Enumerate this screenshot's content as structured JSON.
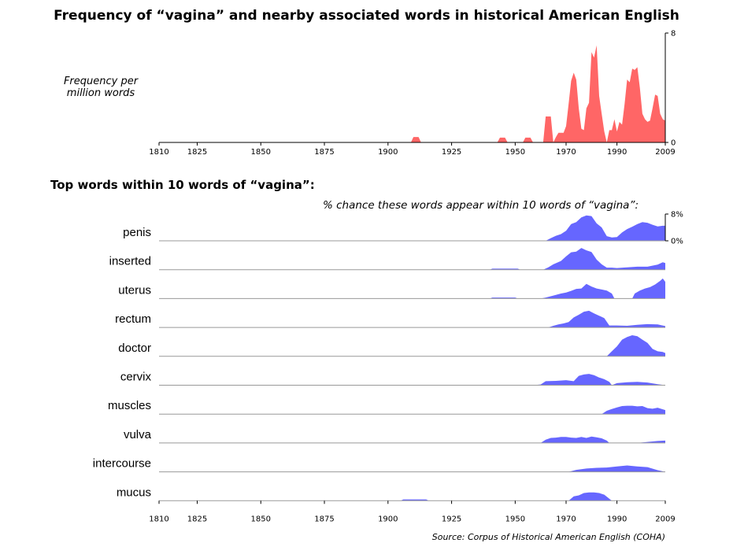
{
  "title": "Frequency of “vagina” and nearby associated words in historical American English",
  "source": "Source: Corpus of Historical American English (COHA)",
  "colors": {
    "main": "#ff6666",
    "rows": "#6666ff",
    "baseline_main": "#000000",
    "baseline_rows": "#999999"
  },
  "chart_data": [
    {
      "type": "area",
      "ylabel": "Frequency per\nmillion words",
      "xlim": [
        1810,
        2009
      ],
      "ylim": [
        0,
        8
      ],
      "x_ticks": [
        1810,
        1825,
        1850,
        1875,
        1900,
        1925,
        1950,
        1970,
        1990,
        2009
      ],
      "x_tick_labels": [
        "1810",
        "1825",
        "1850",
        "1875",
        "1900",
        "1925",
        "1950",
        "1970",
        "1990",
        "2009"
      ],
      "y_ticks": [
        0,
        8
      ],
      "y_tick_labels": [
        "0",
        "8"
      ],
      "grid": false,
      "series": [
        {
          "x": [
            1810,
            1909,
            1910,
            1911,
            1912,
            1913,
            1914,
            1943,
            1944,
            1945,
            1946,
            1947,
            1953,
            1954,
            1955,
            1956,
            1957,
            1961,
            1962,
            1963,
            1964,
            1965,
            1966,
            1967,
            1968,
            1969,
            1970,
            1971,
            1972,
            1973,
            1974,
            1975,
            1976,
            1977,
            1978,
            1979,
            1980,
            1981,
            1982,
            1983,
            1984,
            1985,
            1986,
            1987,
            1988,
            1989,
            1990,
            1991,
            1992,
            1993,
            1994,
            1995,
            1996,
            1997,
            1998,
            1999,
            2000,
            2001,
            2002,
            2003,
            2004,
            2005,
            2006,
            2007,
            2008,
            2009
          ],
          "values": [
            0,
            0,
            0.4,
            0.4,
            0.4,
            0,
            0,
            0,
            0.35,
            0.35,
            0.35,
            0,
            0,
            0.35,
            0.35,
            0.35,
            0,
            0,
            1.9,
            1.9,
            1.9,
            0,
            0.4,
            0.7,
            0.7,
            0.7,
            1.2,
            2.8,
            4.5,
            5.1,
            4.6,
            2.5,
            1.0,
            0.9,
            2.5,
            2.9,
            6.6,
            6.2,
            7.1,
            3.4,
            2.1,
            0.8,
            0,
            0.9,
            0.9,
            1.7,
            0.8,
            1.5,
            1.3,
            2.8,
            4.6,
            4.4,
            5.4,
            5.3,
            5.5,
            4.0,
            2.1,
            1.7,
            1.5,
            1.6,
            2.5,
            3.5,
            3.4,
            2.1,
            1.7,
            1.6
          ]
        }
      ]
    },
    {
      "type": "area",
      "title": "Top words within 10 words of “vagina”:",
      "subtitle": "% chance these words appear within 10 words of “vagina”:",
      "xlim": [
        1810,
        2009
      ],
      "ylim": [
        0,
        8
      ],
      "x_ticks": [
        1810,
        1825,
        1850,
        1875,
        1900,
        1925,
        1950,
        1970,
        1990,
        2009
      ],
      "x_tick_labels": [
        "1810",
        "1825",
        "1850",
        "1875",
        "1900",
        "1925",
        "1950",
        "1970",
        "1990",
        "2009"
      ],
      "y_ticks": [
        0,
        8
      ],
      "y_tick_labels": [
        "0%",
        "8%"
      ],
      "grid": false,
      "series": [
        {
          "name": "penis",
          "x": [
            1962,
            1964,
            1966,
            1968,
            1970,
            1972,
            1974,
            1976,
            1978,
            1980,
            1982,
            1984,
            1986,
            1988,
            1990,
            1992,
            1994,
            1996,
            1998,
            2000,
            2002,
            2004,
            2006,
            2008,
            2009
          ],
          "values": [
            0,
            0.8,
            1.5,
            2.0,
            3.0,
            5.0,
            5.6,
            7.0,
            7.6,
            7.4,
            5.2,
            4.0,
            1.4,
            1.0,
            1.1,
            2.5,
            3.5,
            4.2,
            5.0,
            5.6,
            5.4,
            4.8,
            4.3,
            4.5,
            4.5
          ]
        },
        {
          "name": "inserted",
          "x": [
            1940,
            1941,
            1951,
            1952,
            1961,
            1963,
            1965,
            1968,
            1970,
            1972,
            1974,
            1976,
            1978,
            1980,
            1982,
            1984,
            1986,
            1988,
            1990,
            1994,
            1998,
            2002,
            2006,
            2008,
            2009
          ],
          "values": [
            0,
            0.3,
            0.3,
            0,
            0,
            0.7,
            1.6,
            2.6,
            4.0,
            5.2,
            5.4,
            6.5,
            5.8,
            5.3,
            3.0,
            1.6,
            0.6,
            0.6,
            0.5,
            0.7,
            0.9,
            0.9,
            1.5,
            2.2,
            2.0
          ]
        },
        {
          "name": "uterus",
          "x": [
            1940,
            1941,
            1950,
            1951,
            1960,
            1962,
            1965,
            1968,
            1970,
            1972,
            1974,
            1976,
            1978,
            1980,
            1982,
            1984,
            1986,
            1988,
            1989,
            1996,
            1997,
            1999,
            2001,
            2003,
            2005,
            2007,
            2008,
            2009
          ],
          "values": [
            0,
            0.3,
            0.3,
            0,
            0,
            0.3,
            0.9,
            1.5,
            1.8,
            2.3,
            2.9,
            3.0,
            4.4,
            3.6,
            3.0,
            2.7,
            2.4,
            1.5,
            0,
            0,
            1.5,
            2.4,
            3.0,
            3.4,
            4.2,
            5.3,
            6.0,
            5.0
          ]
        },
        {
          "name": "rectum",
          "x": [
            1963,
            1965,
            1967,
            1969,
            1971,
            1973,
            1975,
            1977,
            1979,
            1981,
            1983,
            1985,
            1987,
            1990,
            1994,
            1998,
            2002,
            2006,
            2009
          ],
          "values": [
            0,
            0.5,
            0.9,
            1.2,
            1.6,
            3.0,
            3.8,
            4.7,
            5.0,
            4.2,
            3.5,
            2.8,
            0.6,
            0.6,
            0.5,
            0.8,
            1.0,
            0.9,
            0.4
          ]
        },
        {
          "name": "doctor",
          "x": [
            1986,
            1988,
            1990,
            1992,
            1994,
            1996,
            1998,
            2000,
            2002,
            2004,
            2006,
            2008,
            2009
          ],
          "values": [
            0,
            1.5,
            3.0,
            5.0,
            5.8,
            6.3,
            6.0,
            5.0,
            4.0,
            2.2,
            1.5,
            1.3,
            1.0
          ]
        },
        {
          "name": "cervix",
          "x": [
            1957,
            1960,
            1962,
            1966,
            1970,
            1973,
            1975,
            1977,
            1979,
            1981,
            1983,
            1985,
            1987,
            1988,
            1990,
            1994,
            1998,
            2002,
            2006,
            2009
          ],
          "values": [
            0,
            0.2,
            1.2,
            1.3,
            1.5,
            1.2,
            2.8,
            3.2,
            3.4,
            3.0,
            2.3,
            1.8,
            1.0,
            0,
            0.6,
            0.9,
            1.0,
            0.8,
            0.3,
            0
          ]
        },
        {
          "name": "muscles",
          "x": [
            1984,
            1986,
            1988,
            1990,
            1992,
            1994,
            1996,
            1998,
            2000,
            2002,
            2004,
            2006,
            2009
          ],
          "values": [
            0,
            1.0,
            1.5,
            2.0,
            2.4,
            2.5,
            2.5,
            2.3,
            2.4,
            1.8,
            1.6,
            1.9,
            1.2
          ]
        },
        {
          "name": "vulva",
          "x": [
            1960,
            1962,
            1964,
            1966,
            1968,
            1970,
            1972,
            1974,
            1976,
            1978,
            1980,
            1982,
            1984,
            1986,
            1987,
            1998,
            2002,
            2006,
            2009
          ],
          "values": [
            0,
            1.0,
            1.5,
            1.6,
            1.8,
            1.8,
            1.6,
            1.5,
            1.8,
            1.5,
            1.9,
            1.7,
            1.4,
            0.7,
            0,
            0,
            0.3,
            0.6,
            0.7
          ]
        },
        {
          "name": "intercourse",
          "x": [
            1971,
            1974,
            1978,
            1982,
            1986,
            1990,
            1994,
            1998,
            2002,
            2006,
            2009
          ],
          "values": [
            0,
            0.6,
            1.0,
            1.2,
            1.3,
            1.6,
            1.9,
            1.6,
            1.4,
            0.5,
            0
          ]
        },
        {
          "name": "mucus",
          "x": [
            1905,
            1906,
            1915,
            1916,
            1971,
            1973,
            1975,
            1977,
            1979,
            1981,
            1983,
            1985,
            1987,
            1988
          ],
          "values": [
            0,
            0.4,
            0.4,
            0,
            0,
            1.3,
            1.6,
            2.3,
            2.5,
            2.5,
            2.3,
            1.8,
            0.6,
            0
          ]
        }
      ]
    }
  ]
}
